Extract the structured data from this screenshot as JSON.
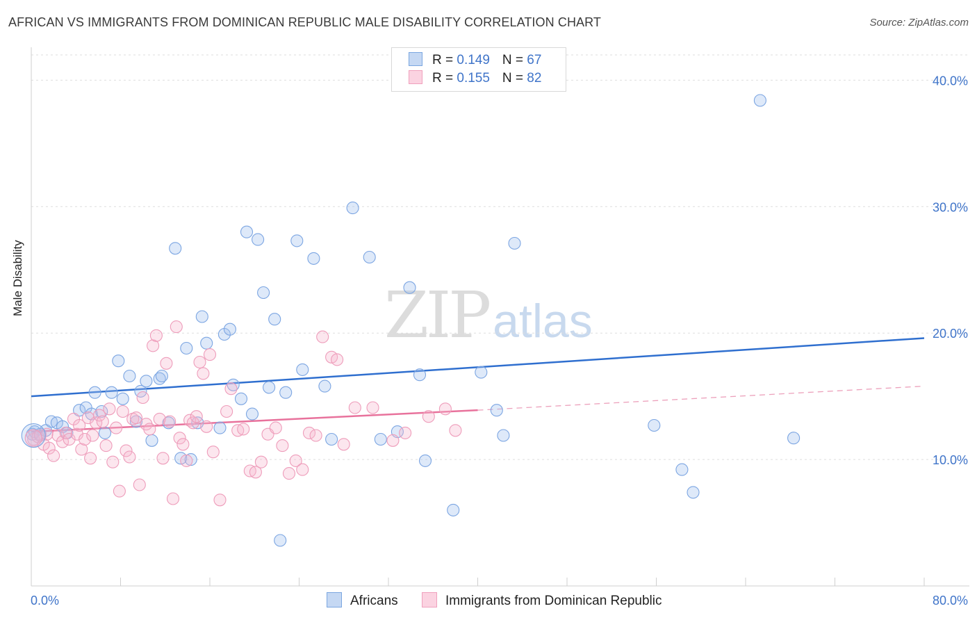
{
  "title": "AFRICAN VS IMMIGRANTS FROM DOMINICAN REPUBLIC MALE DISABILITY CORRELATION CHART",
  "source": "Source: ZipAtlas.com",
  "watermark": {
    "zip": "ZIP",
    "atlas": "atlas"
  },
  "legend": {
    "rows": [
      {
        "r_label": "R = ",
        "r_value": "0.149",
        "n_label": "N = ",
        "n_value": "67",
        "color": "#7aa6e0",
        "fill": "#c5d8f3"
      },
      {
        "r_label": "R = ",
        "r_value": "0.155",
        "n_label": "N = ",
        "n_value": "82",
        "color": "#f0a0bd",
        "fill": "#fbd3e1"
      }
    ]
  },
  "bottom_legend": [
    "Africans",
    "Immigrants from Dominican Republic"
  ],
  "chart_data": {
    "type": "scatter",
    "title": "AFRICAN VS IMMIGRANTS FROM DOMINICAN REPUBLIC MALE DISABILITY CORRELATION CHART",
    "xlabel": "",
    "ylabel": "Male Disability",
    "xlim": [
      0,
      80
    ],
    "ylim": [
      0,
      42
    ],
    "x_tick_labels": [
      "0.0%",
      "80.0%"
    ],
    "y_ticks": [
      10,
      20,
      30,
      40
    ],
    "y_tick_labels": [
      "10.0%",
      "20.0%",
      "30.0%",
      "40.0%"
    ],
    "grid": "horizontal dashed",
    "legend_position": "top-center",
    "series": [
      {
        "name": "Africans",
        "color": "#6b9be0",
        "trend": {
          "x": [
            0,
            80
          ],
          "y": [
            15.0,
            19.6
          ],
          "style": "solid"
        },
        "points": [
          [
            0.3,
            12.2
          ],
          [
            0.8,
            12.0
          ],
          [
            1.3,
            12.3
          ],
          [
            1.8,
            13.0
          ],
          [
            2.3,
            12.9
          ],
          [
            2.8,
            12.6
          ],
          [
            3.2,
            12.1
          ],
          [
            4.3,
            13.9
          ],
          [
            4.9,
            14.1
          ],
          [
            5.4,
            13.6
          ],
          [
            5.7,
            15.3
          ],
          [
            6.3,
            13.8
          ],
          [
            6.6,
            12.1
          ],
          [
            7.2,
            15.3
          ],
          [
            7.8,
            17.8
          ],
          [
            8.2,
            14.8
          ],
          [
            8.8,
            16.6
          ],
          [
            9.4,
            13.0
          ],
          [
            9.8,
            15.4
          ],
          [
            10.3,
            16.2
          ],
          [
            10.8,
            11.5
          ],
          [
            11.5,
            16.4
          ],
          [
            11.7,
            16.6
          ],
          [
            12.3,
            12.9
          ],
          [
            12.9,
            26.7
          ],
          [
            13.4,
            10.1
          ],
          [
            13.9,
            18.8
          ],
          [
            14.3,
            10.0
          ],
          [
            14.9,
            12.9
          ],
          [
            15.3,
            21.3
          ],
          [
            15.7,
            19.2
          ],
          [
            16.9,
            12.5
          ],
          [
            17.3,
            19.9
          ],
          [
            17.8,
            20.3
          ],
          [
            18.1,
            15.9
          ],
          [
            18.8,
            14.8
          ],
          [
            19.3,
            28.0
          ],
          [
            19.8,
            13.6
          ],
          [
            20.3,
            27.4
          ],
          [
            20.8,
            23.2
          ],
          [
            21.3,
            15.7
          ],
          [
            21.8,
            21.1
          ],
          [
            22.3,
            3.6
          ],
          [
            22.8,
            15.3
          ],
          [
            23.8,
            27.3
          ],
          [
            24.3,
            17.1
          ],
          [
            25.3,
            25.9
          ],
          [
            26.3,
            15.8
          ],
          [
            26.9,
            11.6
          ],
          [
            28.8,
            29.9
          ],
          [
            30.3,
            26.0
          ],
          [
            31.3,
            11.6
          ],
          [
            32.8,
            12.2
          ],
          [
            33.9,
            23.6
          ],
          [
            34.8,
            16.7
          ],
          [
            35.3,
            9.9
          ],
          [
            37.8,
            6.0
          ],
          [
            40.3,
            16.9
          ],
          [
            41.7,
            13.9
          ],
          [
            42.3,
            11.9
          ],
          [
            43.3,
            27.1
          ],
          [
            55.8,
            12.7
          ],
          [
            58.3,
            9.2
          ],
          [
            59.3,
            7.4
          ],
          [
            65.3,
            38.4
          ],
          [
            68.3,
            11.7
          ],
          [
            0.1,
            12.0
          ]
        ]
      },
      {
        "name": "Immigrants from Dominican Republic",
        "color": "#f0a0bd",
        "trend": {
          "x": [
            0,
            40
          ],
          "y": [
            12.2,
            13.9
          ],
          "style": "solid",
          "dashed_extension": {
            "x": [
              40,
              80
            ],
            "y": [
              13.9,
              15.8
            ]
          }
        },
        "points": [
          [
            0.2,
            11.6
          ],
          [
            0.6,
            11.8
          ],
          [
            1.1,
            11.2
          ],
          [
            1.6,
            10.9
          ],
          [
            2.0,
            10.3
          ],
          [
            2.4,
            11.9
          ],
          [
            2.8,
            11.4
          ],
          [
            3.1,
            12.1
          ],
          [
            3.4,
            11.6
          ],
          [
            3.8,
            13.2
          ],
          [
            4.1,
            12.0
          ],
          [
            4.3,
            12.7
          ],
          [
            4.5,
            10.8
          ],
          [
            4.8,
            11.6
          ],
          [
            5.1,
            13.3
          ],
          [
            5.3,
            10.1
          ],
          [
            5.5,
            11.9
          ],
          [
            5.8,
            12.9
          ],
          [
            6.1,
            13.5
          ],
          [
            6.4,
            13.0
          ],
          [
            6.7,
            11.1
          ],
          [
            7.0,
            14.0
          ],
          [
            7.3,
            9.8
          ],
          [
            7.6,
            12.5
          ],
          [
            7.9,
            7.5
          ],
          [
            8.2,
            13.8
          ],
          [
            8.5,
            10.7
          ],
          [
            8.8,
            10.2
          ],
          [
            9.1,
            13.2
          ],
          [
            9.4,
            13.3
          ],
          [
            9.7,
            8.0
          ],
          [
            10.0,
            14.9
          ],
          [
            10.3,
            12.8
          ],
          [
            10.6,
            12.4
          ],
          [
            10.9,
            19.0
          ],
          [
            11.2,
            19.8
          ],
          [
            11.5,
            13.2
          ],
          [
            11.8,
            10.1
          ],
          [
            12.1,
            17.6
          ],
          [
            12.4,
            13.0
          ],
          [
            12.7,
            6.9
          ],
          [
            13.0,
            20.5
          ],
          [
            13.3,
            11.7
          ],
          [
            13.6,
            11.2
          ],
          [
            13.9,
            9.9
          ],
          [
            14.2,
            13.1
          ],
          [
            14.5,
            12.9
          ],
          [
            14.8,
            13.4
          ],
          [
            15.1,
            17.7
          ],
          [
            15.4,
            16.8
          ],
          [
            15.7,
            12.6
          ],
          [
            16.0,
            18.3
          ],
          [
            16.3,
            10.6
          ],
          [
            16.9,
            6.8
          ],
          [
            17.5,
            13.8
          ],
          [
            17.9,
            15.6
          ],
          [
            18.5,
            12.3
          ],
          [
            19.0,
            12.4
          ],
          [
            19.6,
            9.1
          ],
          [
            20.1,
            9.0
          ],
          [
            20.6,
            9.8
          ],
          [
            21.2,
            12.0
          ],
          [
            21.9,
            12.5
          ],
          [
            22.5,
            11.1
          ],
          [
            23.1,
            8.9
          ],
          [
            23.7,
            9.9
          ],
          [
            24.3,
            9.2
          ],
          [
            24.9,
            12.1
          ],
          [
            25.5,
            11.9
          ],
          [
            26.1,
            19.7
          ],
          [
            26.9,
            18.1
          ],
          [
            27.4,
            17.9
          ],
          [
            28.0,
            11.2
          ],
          [
            29.0,
            14.1
          ],
          [
            30.6,
            14.1
          ],
          [
            32.4,
            11.5
          ],
          [
            33.5,
            12.1
          ],
          [
            35.6,
            13.4
          ],
          [
            37.1,
            14.0
          ],
          [
            38.0,
            12.3
          ],
          [
            0.8,
            11.9
          ],
          [
            1.4,
            12.0
          ]
        ]
      }
    ]
  }
}
